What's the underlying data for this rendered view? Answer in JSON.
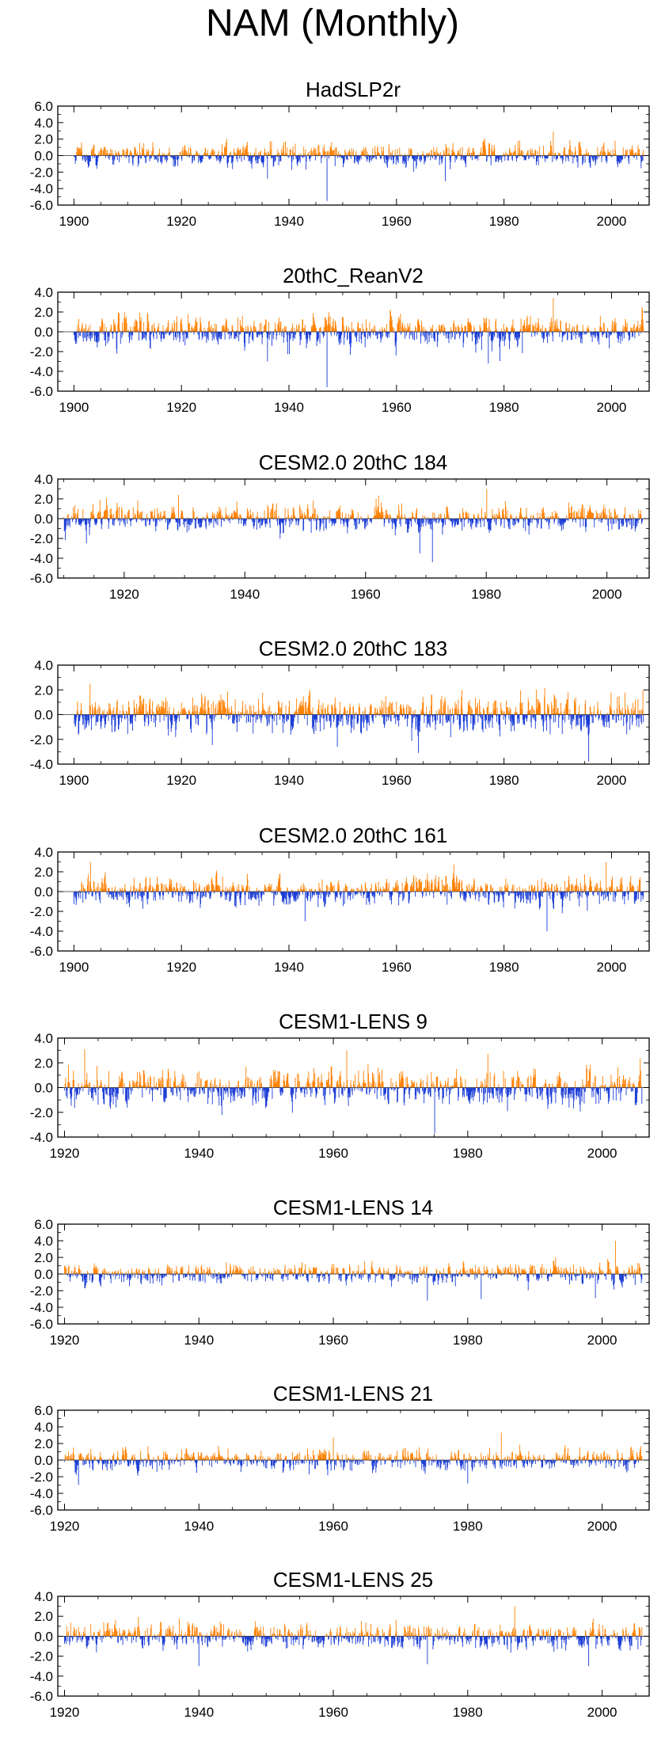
{
  "title": "NAM (Monthly)",
  "colors": {
    "positive": "#ff8000",
    "negative": "#1a3cd6",
    "frame": "#000000"
  },
  "chart_data": [
    {
      "type": "bar",
      "title": "HadSLP2r",
      "xlim": [
        1897,
        2007
      ],
      "ylim": [
        -6,
        6
      ],
      "yticks": [
        "6.0",
        "4.0",
        "2.0",
        "0.0",
        "-2.0",
        "-4.0",
        "-6.0"
      ],
      "xticks": [
        1900,
        1920,
        1940,
        1960,
        1980,
        2000
      ],
      "x_start": 1900,
      "x_end": 2005,
      "amp_pos": 1.15,
      "amp_neg": 1.0,
      "extremes": [
        [
          1947.1,
          -5.5
        ],
        [
          1989.2,
          2.9
        ],
        [
          1936.0,
          -2.8
        ],
        [
          1969.1,
          -3.1
        ]
      ]
    },
    {
      "type": "bar",
      "title": "20thC_ReanV2",
      "xlim": [
        1897,
        2007
      ],
      "ylim": [
        -6,
        4
      ],
      "yticks": [
        "4.0",
        "2.0",
        "0.0",
        "-2.0",
        "-4.0",
        "-6.0"
      ],
      "xticks": [
        1900,
        1920,
        1940,
        1960,
        1980,
        2000
      ],
      "x_start": 1900,
      "x_end": 2005,
      "amp_pos": 1.25,
      "amp_neg": 1.2,
      "extremes": [
        [
          1947.1,
          -5.6
        ],
        [
          1989.2,
          3.4
        ],
        [
          1977.1,
          -3.2
        ],
        [
          1936.0,
          -3.0
        ]
      ]
    },
    {
      "type": "bar",
      "title": "CESM2.0 20thC 184",
      "xlim": [
        1909,
        2007
      ],
      "ylim": [
        -6,
        4
      ],
      "yticks": [
        "4.0",
        "2.0",
        "0.0",
        "-2.0",
        "-4.0",
        "-6.0"
      ],
      "xticks": [
        1920,
        1940,
        1960,
        1980,
        2000
      ],
      "x_start": 1910,
      "x_end": 2005,
      "amp_pos": 1.1,
      "amp_neg": 1.05,
      "extremes": [
        [
          1971.1,
          -4.4
        ],
        [
          1980.1,
          3.0
        ],
        [
          1969.0,
          -3.5
        ],
        [
          1929.0,
          2.4
        ]
      ]
    },
    {
      "type": "bar",
      "title": "CESM2.0 20thC 183",
      "xlim": [
        1897,
        2007
      ],
      "ylim": [
        -4,
        4
      ],
      "yticks": [
        "4.0",
        "2.0",
        "0.0",
        "-2.0",
        "-4.0"
      ],
      "xticks": [
        1900,
        1920,
        1940,
        1960,
        1980,
        2000
      ],
      "x_start": 1900,
      "x_end": 2005,
      "amp_pos": 1.2,
      "amp_neg": 1.15,
      "extremes": [
        [
          1903.0,
          2.5
        ],
        [
          1964.1,
          -3.1
        ],
        [
          1986.0,
          2.0
        ],
        [
          1949.0,
          -2.6
        ]
      ]
    },
    {
      "type": "bar",
      "title": "CESM2.0 20thC 161",
      "xlim": [
        1897,
        2007
      ],
      "ylim": [
        -6,
        4
      ],
      "yticks": [
        "4.0",
        "2.0",
        "0.0",
        "-2.0",
        "-4.0",
        "-6.0"
      ],
      "xticks": [
        1900,
        1920,
        1940,
        1960,
        1980,
        2000
      ],
      "x_start": 1900,
      "x_end": 2005,
      "amp_pos": 1.15,
      "amp_neg": 1.1,
      "extremes": [
        [
          1988.0,
          -4.0
        ],
        [
          1903.1,
          3.0
        ],
        [
          1999.0,
          3.0
        ],
        [
          1943.0,
          -3.0
        ]
      ]
    },
    {
      "type": "bar",
      "title": "CESM1-LENS 9",
      "xlim": [
        1919,
        2007
      ],
      "ylim": [
        -4,
        4
      ],
      "yticks": [
        "4.0",
        "2.0",
        "0.0",
        "-2.0",
        "-4.0"
      ],
      "xticks": [
        1920,
        1940,
        1960,
        1980,
        2000
      ],
      "x_start": 1920,
      "x_end": 2005,
      "amp_pos": 1.25,
      "amp_neg": 1.2,
      "extremes": [
        [
          1923.0,
          3.1
        ],
        [
          1975.1,
          -3.7
        ],
        [
          1962.0,
          3.0
        ],
        [
          1983.0,
          2.7
        ]
      ]
    },
    {
      "type": "bar",
      "title": "CESM1-LENS 14",
      "xlim": [
        1919,
        2007
      ],
      "ylim": [
        -6,
        6
      ],
      "yticks": [
        "6.0",
        "4.0",
        "2.0",
        "0.0",
        "-2.0",
        "-4.0",
        "-6.0"
      ],
      "xticks": [
        1920,
        1940,
        1960,
        1980,
        2000
      ],
      "x_start": 1920,
      "x_end": 2005,
      "amp_pos": 1.05,
      "amp_neg": 1.0,
      "extremes": [
        [
          2002.0,
          4.0
        ],
        [
          1974.0,
          -3.2
        ],
        [
          1999.0,
          -2.9
        ],
        [
          1982.0,
          -3.0
        ]
      ]
    },
    {
      "type": "bar",
      "title": "CESM1-LENS 21",
      "xlim": [
        1919,
        2007
      ],
      "ylim": [
        -6,
        6
      ],
      "yticks": [
        "6.0",
        "4.0",
        "2.0",
        "0.0",
        "-2.0",
        "-4.0",
        "-6.0"
      ],
      "xticks": [
        1920,
        1940,
        1960,
        1980,
        2000
      ],
      "x_start": 1920,
      "x_end": 2005,
      "amp_pos": 1.05,
      "amp_neg": 1.0,
      "extremes": [
        [
          1985.0,
          3.3
        ],
        [
          1922.1,
          -3.0
        ],
        [
          1980.0,
          -2.8
        ],
        [
          1960.0,
          2.7
        ]
      ]
    },
    {
      "type": "bar",
      "title": "CESM1-LENS 25",
      "xlim": [
        1919,
        2007
      ],
      "ylim": [
        -6,
        4
      ],
      "yticks": [
        "4.0",
        "2.0",
        "0.0",
        "-2.0",
        "-4.0",
        "-6.0"
      ],
      "xticks": [
        1920,
        1940,
        1960,
        1980,
        2000
      ],
      "x_start": 1920,
      "x_end": 2005,
      "amp_pos": 1.15,
      "amp_neg": 1.05,
      "extremes": [
        [
          1987.0,
          3.0
        ],
        [
          1940.0,
          -3.0
        ],
        [
          1974.0,
          -2.8
        ],
        [
          1998.0,
          -3.0
        ]
      ]
    }
  ]
}
